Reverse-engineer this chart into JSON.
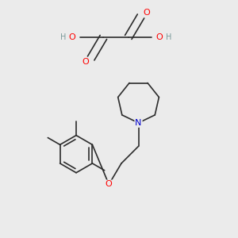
{
  "background_color": "#ebebeb",
  "bond_color": "#2c2c2c",
  "atom_colors": {
    "O": "#ff0000",
    "N": "#0000cc",
    "C": "#2c2c2c",
    "H": "#7a9a9a"
  },
  "figsize": [
    3.0,
    3.0
  ],
  "dpi": 100
}
